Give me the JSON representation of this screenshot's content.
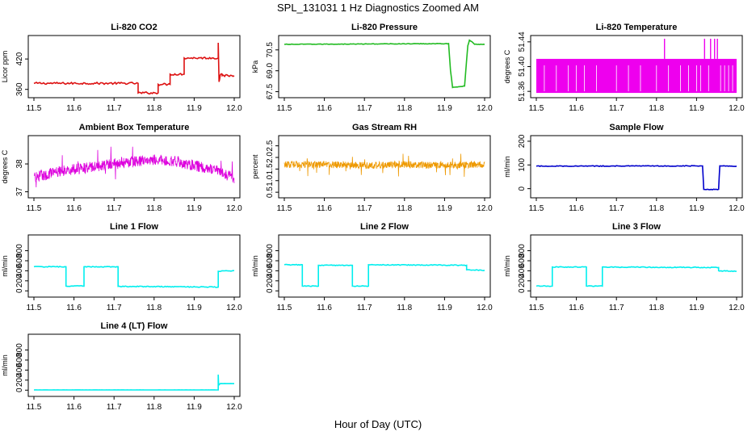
{
  "figure": {
    "title": "SPL_131031  1 Hz Diagnostics Zoomed AM",
    "xlabel": "Hour of Day (UTC)"
  },
  "chart_data": [
    {
      "id": "co2",
      "type": "line",
      "title": "Li-820 CO2",
      "ylabel": "Licor ppm",
      "color": "#dd1111",
      "noise": 2,
      "xlim": [
        11.5,
        12.0
      ],
      "ylim": [
        350,
        460
      ],
      "xticks": [
        11.5,
        11.6,
        11.7,
        11.8,
        11.9,
        12.0
      ],
      "yticks": [
        360,
        420
      ],
      "x": [
        11.5,
        11.76,
        11.76,
        11.81,
        11.81,
        11.84,
        11.84,
        11.875,
        11.875,
        11.96,
        11.96,
        11.962,
        11.965,
        11.97,
        11.97,
        12.0
      ],
      "y": [
        372,
        372,
        353,
        353,
        370,
        370,
        390,
        390,
        422,
        422,
        452,
        375,
        388,
        390,
        387,
        387
      ]
    },
    {
      "id": "pressure",
      "type": "line",
      "title": "Li-820 Pressure",
      "ylabel": "kPa",
      "color": "#22bb22",
      "noise": 0.02,
      "xlim": [
        11.5,
        12.0
      ],
      "ylim": [
        67.3,
        71.3
      ],
      "xticks": [
        11.5,
        11.6,
        11.7,
        11.8,
        11.9,
        12.0
      ],
      "yticks": [
        67.5,
        69.0,
        70.5
      ],
      "x": [
        11.5,
        11.91,
        11.915,
        11.92,
        11.95,
        11.958,
        11.962,
        11.968,
        11.975,
        12.0
      ],
      "y": [
        70.9,
        70.95,
        69.0,
        67.8,
        67.9,
        70.8,
        71.2,
        71.1,
        70.9,
        70.9
      ]
    },
    {
      "id": "temperature",
      "type": "band",
      "title": "Li-820 Temperature",
      "ylabel": "degrees C",
      "color": "#ee00ee",
      "xlim": [
        11.5,
        12.0
      ],
      "ylim": [
        51.355,
        51.445
      ],
      "xticks": [
        11.5,
        11.6,
        11.7,
        11.8,
        11.9,
        12.0
      ],
      "yticks": [
        51.36,
        51.4,
        51.44
      ],
      "band": [
        51.3575,
        51.4125
      ],
      "spikes": [
        11.82,
        11.92,
        11.935,
        11.945,
        11.952
      ],
      "dips": [
        11.52,
        11.55,
        11.58,
        11.6,
        11.62,
        11.65,
        11.7,
        11.73,
        11.76,
        11.8,
        11.83,
        11.86,
        11.88,
        11.9,
        11.91,
        11.93,
        11.96,
        11.97,
        11.98,
        11.99
      ]
    },
    {
      "id": "boxtemp",
      "type": "noisy",
      "title": "Ambient Box Temperature",
      "ylabel": "degrees C",
      "color": "#dd00dd",
      "noise": 0.2,
      "xlim": [
        11.5,
        12.0
      ],
      "ylim": [
        36.9,
        38.9
      ],
      "xticks": [
        11.5,
        11.6,
        11.7,
        11.8,
        11.9,
        12.0
      ],
      "yticks": [
        37.0,
        38.0
      ],
      "x": [
        11.5,
        11.55,
        11.6,
        11.65,
        11.7,
        11.75,
        11.8,
        11.85,
        11.9,
        11.95,
        12.0
      ],
      "y": [
        37.5,
        37.7,
        37.8,
        37.9,
        38.0,
        38.1,
        38.15,
        38.1,
        37.95,
        37.8,
        37.5
      ]
    },
    {
      "id": "rh",
      "type": "noisy",
      "title": "Gas Stream RH",
      "ylabel": "percent",
      "color": "#ee9900",
      "noise": 0.15,
      "xlim": [
        11.5,
        12.0
      ],
      "ylim": [
        0.4,
        2.8
      ],
      "xticks": [
        11.5,
        11.6,
        11.7,
        11.8,
        11.9,
        12.0
      ],
      "yticks": [
        0.5,
        1.0,
        1.5,
        2.0,
        2.5
      ],
      "x": [
        11.5,
        11.6,
        11.7,
        11.8,
        11.9,
        12.0
      ],
      "y": [
        1.7,
        1.7,
        1.65,
        1.7,
        1.65,
        1.7
      ]
    },
    {
      "id": "sampleflow",
      "type": "line",
      "title": "Sample Flow",
      "ylabel": "ml/min",
      "color": "#0000cc",
      "noise": 1.5,
      "xlim": [
        11.5,
        12.0
      ],
      "ylim": [
        -25,
        210
      ],
      "xticks": [
        11.5,
        11.6,
        11.7,
        11.8,
        11.9,
        12.0
      ],
      "yticks": [
        0,
        100,
        200
      ],
      "x": [
        11.5,
        11.915,
        11.918,
        11.955,
        11.958,
        12.0
      ],
      "y": [
        95,
        96,
        -3,
        -3,
        96,
        95
      ]
    },
    {
      "id": "line1",
      "type": "line",
      "title": "Line 1 Flow",
      "ylabel": "ml/min",
      "color": "#00eeee",
      "noise": 8,
      "xlim": [
        11.5,
        12.0
      ],
      "ylim": [
        -60,
        1050
      ],
      "xticks": [
        11.5,
        11.6,
        11.7,
        11.8,
        11.9,
        12.0
      ],
      "yticks": [
        0,
        200,
        400,
        600,
        800
      ],
      "x": [
        11.5,
        11.58,
        11.58,
        11.625,
        11.625,
        11.71,
        11.71,
        11.96,
        11.96,
        12.0
      ],
      "y": [
        480,
        480,
        95,
        95,
        480,
        480,
        90,
        75,
        390,
        400
      ]
    },
    {
      "id": "line2",
      "type": "line",
      "title": "Line 2 Flow",
      "ylabel": "ml/min",
      "color": "#00eeee",
      "noise": 8,
      "xlim": [
        11.5,
        12.0
      ],
      "ylim": [
        -60,
        1050
      ],
      "xticks": [
        11.5,
        11.6,
        11.7,
        11.8,
        11.9,
        12.0
      ],
      "yticks": [
        0,
        200,
        400,
        600,
        800
      ],
      "x": [
        11.5,
        11.545,
        11.545,
        11.585,
        11.585,
        11.67,
        11.67,
        11.71,
        11.71,
        11.955,
        11.955,
        12.0
      ],
      "y": [
        520,
        520,
        95,
        95,
        510,
        510,
        95,
        95,
        520,
        510,
        420,
        410
      ]
    },
    {
      "id": "line3",
      "type": "line",
      "title": "Line 3 Flow",
      "ylabel": "ml/min",
      "color": "#00eeee",
      "noise": 8,
      "xlim": [
        11.5,
        12.0
      ],
      "ylim": [
        -60,
        1050
      ],
      "xticks": [
        11.5,
        11.6,
        11.7,
        11.8,
        11.9,
        12.0
      ],
      "yticks": [
        0,
        200,
        400,
        600,
        800
      ],
      "x": [
        11.5,
        11.54,
        11.54,
        11.625,
        11.625,
        11.665,
        11.665,
        11.955,
        11.955,
        12.0
      ],
      "y": [
        95,
        95,
        475,
        475,
        95,
        95,
        475,
        465,
        400,
        390
      ]
    },
    {
      "id": "line4",
      "type": "line",
      "title": "Line 4 (LT) Flow",
      "ylabel": "ml/min",
      "color": "#00eeee",
      "noise": 1,
      "xlim": [
        11.5,
        12.0
      ],
      "ylim": [
        -60,
        1050
      ],
      "xticks": [
        11.5,
        11.6,
        11.7,
        11.8,
        11.9,
        12.0
      ],
      "yticks": [
        0,
        200,
        400,
        600,
        800
      ],
      "x": [
        11.5,
        11.96,
        11.96,
        11.961,
        11.965,
        12.0
      ],
      "y": [
        5,
        5,
        310,
        100,
        130,
        130
      ]
    }
  ]
}
